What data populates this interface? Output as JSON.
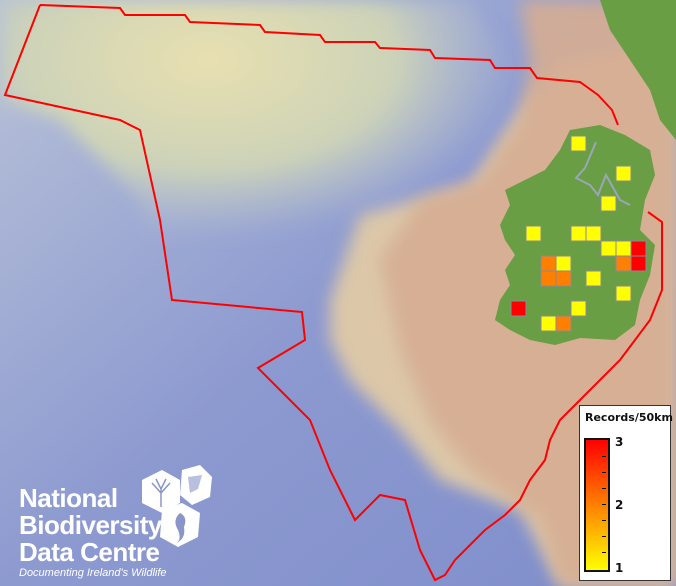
{
  "legend": {
    "title": "Records/50km",
    "max_label": "3",
    "mid_label": "2",
    "min_label": "1",
    "colors": {
      "high": "#ff0000",
      "mid": "#ff8000",
      "low": "#ffff00"
    }
  },
  "logo": {
    "line1": "National",
    "line2": "Biodiversity",
    "line3": "Data Centre",
    "tagline": "Documenting Ireland's Wildlife"
  },
  "map": {
    "boundary_color": "#ff0000",
    "land_color": "#6a9e45",
    "grid_cell_border": "#8a8a9a",
    "records_grid": [
      {
        "col": 4,
        "row": 0,
        "records": 1
      },
      {
        "col": 7,
        "row": 2,
        "records": 1
      },
      {
        "col": 6,
        "row": 4,
        "records": 1
      },
      {
        "col": 1,
        "row": 6,
        "records": 1
      },
      {
        "col": 4,
        "row": 6,
        "records": 1
      },
      {
        "col": 5,
        "row": 6,
        "records": 1
      },
      {
        "col": 6,
        "row": 7,
        "records": 1
      },
      {
        "col": 7,
        "row": 7,
        "records": 1
      },
      {
        "col": 8,
        "row": 7,
        "records": 3
      },
      {
        "col": 2,
        "row": 8,
        "records": 2
      },
      {
        "col": 3,
        "row": 8,
        "records": 1
      },
      {
        "col": 7,
        "row": 8,
        "records": 2
      },
      {
        "col": 8,
        "row": 8,
        "records": 3
      },
      {
        "col": 2,
        "row": 9,
        "records": 2
      },
      {
        "col": 3,
        "row": 9,
        "records": 2
      },
      {
        "col": 5,
        "row": 9,
        "records": 1
      },
      {
        "col": 7,
        "row": 10,
        "records": 1
      },
      {
        "col": 0,
        "row": 11,
        "records": 3
      },
      {
        "col": 4,
        "row": 11,
        "records": 1
      },
      {
        "col": 2,
        "row": 12,
        "records": 1
      },
      {
        "col": 3,
        "row": 12,
        "records": 2
      }
    ]
  }
}
